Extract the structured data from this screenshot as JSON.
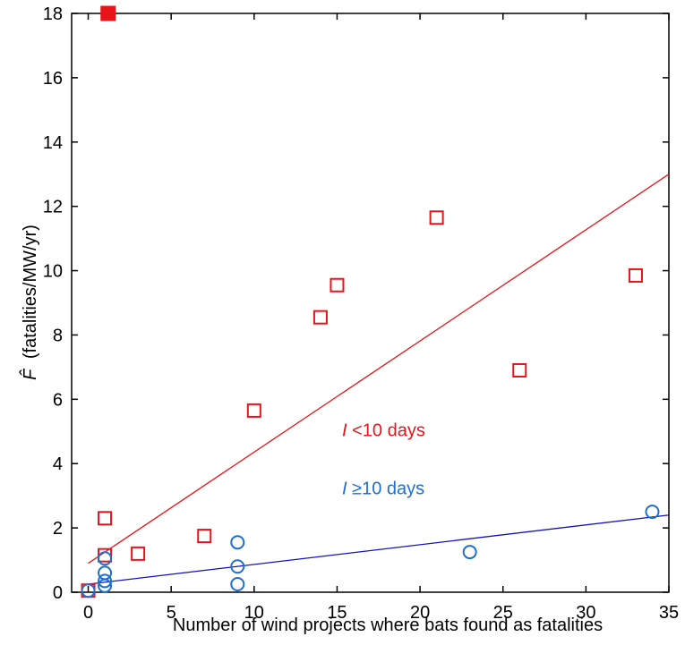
{
  "chart_data": {
    "type": "scatter",
    "title": "",
    "xlabel": "Number of wind projects where bats found as fatalities",
    "ylabel_symbol": "F̂",
    "ylabel": "(fatalities/MW/yr)",
    "xlim": [
      -1,
      35
    ],
    "ylim": [
      0,
      18
    ],
    "x_ticks": [
      0,
      5,
      10,
      15,
      20,
      25,
      30,
      35
    ],
    "y_ticks": [
      0,
      2,
      4,
      6,
      8,
      10,
      12,
      14,
      16,
      18
    ],
    "grid": false,
    "colors": {
      "red": "#e8141a",
      "blue": "#1e6fd0",
      "red_line": "#e8141a",
      "blue_line": "#1414b4"
    },
    "series": [
      {
        "marker": "square-open",
        "color": "#e8141a",
        "points": [
          [
            0,
            0.05
          ],
          [
            1,
            1.15
          ],
          [
            1,
            2.3
          ],
          [
            3,
            1.2
          ],
          [
            7,
            1.75
          ],
          [
            10,
            5.65
          ],
          [
            14,
            8.55
          ],
          [
            15,
            9.55
          ],
          [
            21,
            11.65
          ],
          [
            26,
            6.9
          ],
          [
            33,
            9.85
          ]
        ]
      },
      {
        "marker": "square-filled",
        "color": "#e8141a",
        "points": [
          [
            1.2,
            18
          ]
        ]
      },
      {
        "marker": "circle-open",
        "color": "#1e6fd0",
        "points": [
          [
            0,
            0.05
          ],
          [
            1,
            0.2
          ],
          [
            1,
            0.35
          ],
          [
            1,
            0.6
          ],
          [
            1,
            1.05
          ],
          [
            9,
            0.25
          ],
          [
            9,
            0.8
          ],
          [
            9,
            1.55
          ],
          [
            23,
            1.25
          ],
          [
            34,
            2.5
          ]
        ]
      }
    ],
    "fit_lines": [
      {
        "color": "#e8141a",
        "x": [
          0,
          35
        ],
        "y": [
          0.9,
          13.0
        ]
      },
      {
        "color": "#1414b4",
        "x": [
          0,
          35
        ],
        "y": [
          0.25,
          2.4
        ]
      }
    ],
    "annotations": [
      {
        "italic": "I",
        "text": " <10 days",
        "color": "#e8141a",
        "x": 15.3,
        "y": 4.85
      },
      {
        "italic": "I",
        "text": " ≥10 days",
        "color": "#1e6fd0",
        "x": 15.3,
        "y": 3.05
      }
    ]
  }
}
